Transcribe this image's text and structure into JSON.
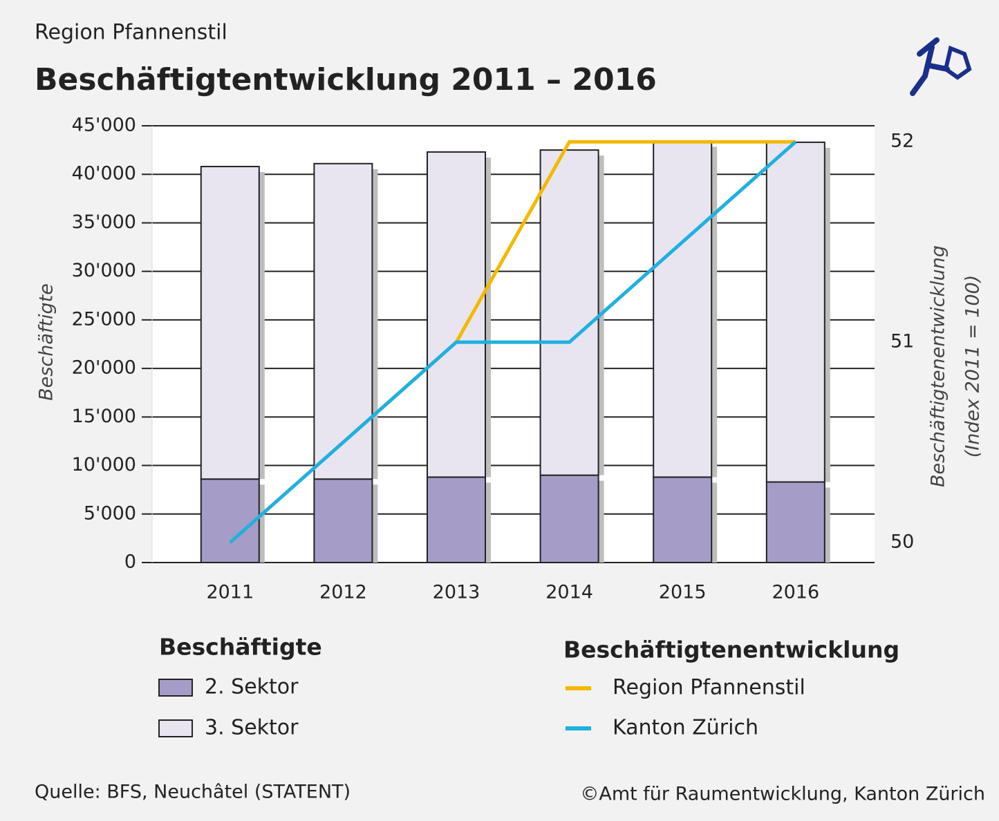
{
  "chart_data": {
    "type": "bar",
    "stacked": true,
    "subtitle": "Region Pfannenstil",
    "title": "Beschäftigtentwicklung 2011 – 2016",
    "ylabel": "Beschäftigte",
    "y2label": [
      "Beschäftigtenentwicklung",
      "(Index 2011 = 100)"
    ],
    "categories": [
      "2011",
      "2012",
      "2013",
      "2014",
      "2015",
      "2016"
    ],
    "ylim": [
      0,
      45000
    ],
    "yticks": [
      0,
      {
        "value": 5000,
        "label": "5'000"
      },
      {
        "value": 10000,
        "label": "10'000"
      },
      {
        "value": 15000,
        "label": "15'000"
      },
      {
        "value": 20000,
        "label": "20'000"
      },
      {
        "value": 25000,
        "label": "25'000"
      },
      {
        "value": 30000,
        "label": "30'000"
      },
      {
        "value": 35000,
        "label": "35'000"
      },
      {
        "value": 40000,
        "label": "40'000"
      },
      {
        "value": 45000,
        "label": "45'000"
      }
    ],
    "y2lim": [
      49.9,
      52.08
    ],
    "y2ticks": [
      50,
      51,
      52
    ],
    "grid": true,
    "legend_titles": [
      "Beschäftigte",
      "Beschäftigtenentwicklung"
    ],
    "series": [
      {
        "name": "2. Sektor",
        "type": "bar",
        "color": "#a59dc8",
        "values": [
          8600,
          8600,
          8800,
          9000,
          8800,
          8300
        ]
      },
      {
        "name": "3. Sektor",
        "type": "bar",
        "color": "#e8e5f1",
        "values": [
          32200,
          32500,
          33500,
          33500,
          34600,
          35000
        ]
      },
      {
        "name": "Region Pfannenstil",
        "type": "line",
        "axis": "y2",
        "color": "#f5b800",
        "values": [
          50,
          50.5,
          51,
          52,
          52,
          52
        ]
      },
      {
        "name": "Kanton Zürich",
        "type": "line",
        "axis": "y2",
        "color": "#1fb0e0",
        "values": [
          50,
          50.5,
          51,
          51,
          51.5,
          52
        ]
      }
    ],
    "source": "Quelle: BFS, Neuchâtel (STATENT)",
    "copyright": "©Amt für Raumentwicklung, Kanton Zürich"
  }
}
